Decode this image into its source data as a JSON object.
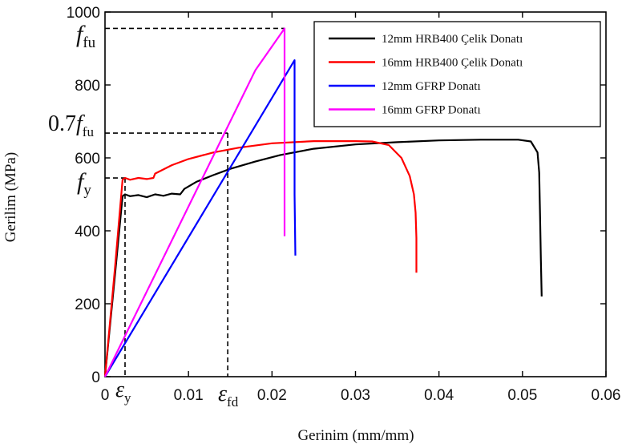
{
  "chart_data": {
    "type": "line",
    "xlabel": "Gerinim (mm/mm)",
    "ylabel": "Gerilim (MPa)",
    "xlim": [
      0,
      0.06
    ],
    "ylim": [
      0,
      1000
    ],
    "x_ticks": [
      {
        "value": 0,
        "label": "0"
      },
      {
        "value": 0.01,
        "label": "0.01"
      },
      {
        "value": 0.02,
        "label": "0.02"
      },
      {
        "value": 0.03,
        "label": "0.03"
      },
      {
        "value": 0.04,
        "label": "0.04"
      },
      {
        "value": 0.05,
        "label": "0.05"
      },
      {
        "value": 0.06,
        "label": "0.06"
      }
    ],
    "y_ticks": [
      {
        "value": 0,
        "label": "0"
      },
      {
        "value": 200,
        "label": "200"
      },
      {
        "value": 400,
        "label": "400"
      },
      {
        "value": 600,
        "label": "600"
      },
      {
        "value": 800,
        "label": "800"
      },
      {
        "value": 1000,
        "label": "1000"
      }
    ],
    "grid": false,
    "legend_position": "top-right",
    "series": [
      {
        "name": "12mm HRB400 Çelik Donatı",
        "color": "#000000",
        "x": [
          0,
          0.0012,
          0.0021,
          0.0024,
          0.003,
          0.004,
          0.005,
          0.006,
          0.007,
          0.008,
          0.009,
          0.0095,
          0.011,
          0.013,
          0.015,
          0.018,
          0.021,
          0.025,
          0.03,
          0.035,
          0.04,
          0.045,
          0.0495,
          0.051,
          0.0518,
          0.052,
          0.0521,
          0.0522,
          0.0523
        ],
        "y": [
          0,
          280,
          495,
          500,
          495,
          498,
          492,
          500,
          496,
          502,
          500,
          515,
          535,
          553,
          570,
          590,
          608,
          625,
          637,
          643,
          648,
          650,
          650,
          645,
          615,
          560,
          450,
          320,
          220
        ]
      },
      {
        "name": "16mm HRB400 Çelik Donatı",
        "color": "#ff0000",
        "x": [
          0,
          0.0012,
          0.0021,
          0.0024,
          0.003,
          0.004,
          0.005,
          0.0058,
          0.006,
          0.008,
          0.01,
          0.013,
          0.016,
          0.02,
          0.025,
          0.03,
          0.032,
          0.034,
          0.0355,
          0.0365,
          0.037,
          0.0372,
          0.0373,
          0.0373
        ],
        "y": [
          0,
          300,
          540,
          545,
          540,
          545,
          542,
          545,
          557,
          580,
          597,
          615,
          628,
          640,
          646,
          646,
          645,
          635,
          600,
          550,
          500,
          450,
          380,
          285
        ]
      },
      {
        "name": "12mm GFRP Donatı",
        "color": "#0000ff",
        "x": [
          0,
          0.0227,
          0.0227,
          0.0227,
          0.0228
        ],
        "y": [
          0,
          868,
          700,
          500,
          332
        ]
      },
      {
        "name": "16mm GFRP Donatı",
        "color": "#ff00ff",
        "x": [
          0,
          0.018,
          0.0215,
          0.0215,
          0.0215
        ],
        "y": [
          0,
          840,
          955,
          700,
          385
        ]
      }
    ],
    "annotations": [
      {
        "label_html": "f",
        "sub": "fu",
        "prefix": "",
        "level_y": 955,
        "ref_x": 0.0215
      },
      {
        "label_html": "f",
        "sub": "fu",
        "prefix": "0.7",
        "level_y": 668,
        "ref_x": 0.0147
      },
      {
        "label_html": "f",
        "sub": "y",
        "prefix": "",
        "level_y": 545,
        "ref_x": 0.0024
      },
      {
        "label_html": "ε",
        "sub": "y",
        "prefix": "",
        "ref_x": 0.0024
      },
      {
        "label_html": "ε",
        "sub": "fd",
        "prefix": "",
        "ref_x": 0.0147
      }
    ]
  }
}
